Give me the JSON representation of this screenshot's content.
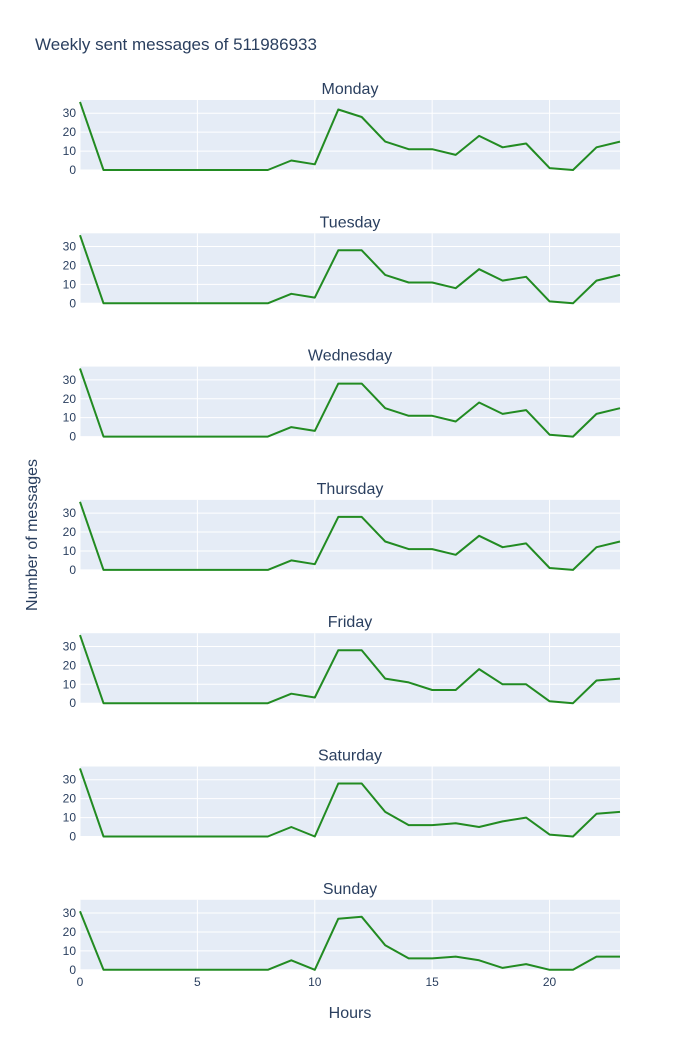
{
  "chart_data": {
    "type": "line",
    "title": "Weekly sent messages of 511986933",
    "xlabel": "Hours",
    "ylabel": "Number of messages",
    "xlim": [
      0,
      23
    ],
    "ylim": [
      0,
      37
    ],
    "x_ticks": [
      0,
      5,
      10,
      15,
      20
    ],
    "y_ticks": [
      0,
      10,
      20,
      30
    ],
    "line_color": "#228b22",
    "grid": true,
    "legend": "none",
    "x": [
      0,
      1,
      2,
      3,
      4,
      5,
      6,
      7,
      8,
      9,
      10,
      11,
      12,
      13,
      14,
      15,
      16,
      17,
      18,
      19,
      20,
      21,
      22,
      23
    ],
    "subplots": [
      {
        "name": "Monday",
        "values": [
          36,
          0,
          0,
          0,
          0,
          0,
          0,
          0,
          0,
          5,
          3,
          32,
          28,
          15,
          11,
          11,
          8,
          18,
          12,
          14,
          1,
          0,
          12,
          15
        ]
      },
      {
        "name": "Tuesday",
        "values": [
          36,
          0,
          0,
          0,
          0,
          0,
          0,
          0,
          0,
          5,
          3,
          28,
          28,
          15,
          11,
          11,
          8,
          18,
          12,
          14,
          1,
          0,
          12,
          15
        ]
      },
      {
        "name": "Wednesday",
        "values": [
          36,
          0,
          0,
          0,
          0,
          0,
          0,
          0,
          0,
          5,
          3,
          28,
          28,
          15,
          11,
          11,
          8,
          18,
          12,
          14,
          1,
          0,
          12,
          15
        ]
      },
      {
        "name": "Thursday",
        "values": [
          36,
          0,
          0,
          0,
          0,
          0,
          0,
          0,
          0,
          5,
          3,
          28,
          28,
          15,
          11,
          11,
          8,
          18,
          12,
          14,
          1,
          0,
          12,
          15
        ]
      },
      {
        "name": "Friday",
        "values": [
          36,
          0,
          0,
          0,
          0,
          0,
          0,
          0,
          0,
          5,
          3,
          28,
          28,
          13,
          11,
          7,
          7,
          18,
          10,
          10,
          1,
          0,
          12,
          13
        ]
      },
      {
        "name": "Saturday",
        "values": [
          36,
          0,
          0,
          0,
          0,
          0,
          0,
          0,
          0,
          5,
          0,
          28,
          28,
          13,
          6,
          6,
          7,
          5,
          8,
          10,
          1,
          0,
          12,
          13
        ]
      },
      {
        "name": "Sunday",
        "values": [
          31,
          0,
          0,
          0,
          0,
          0,
          0,
          0,
          0,
          5,
          0,
          27,
          28,
          13,
          6,
          6,
          7,
          5,
          1,
          3,
          0,
          0,
          7,
          7
        ]
      }
    ]
  }
}
